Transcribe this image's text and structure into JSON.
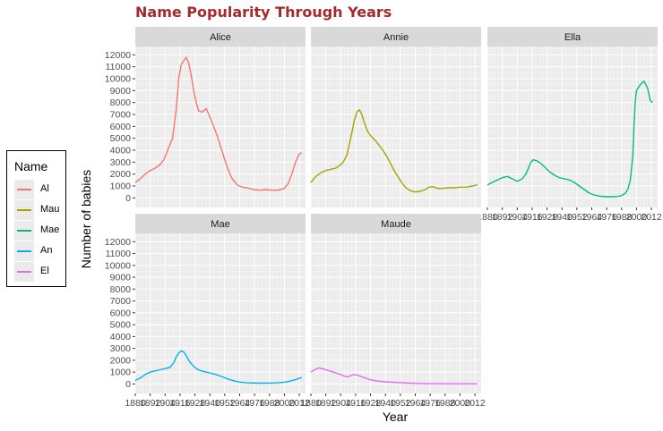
{
  "title": "Name Popularity Through Years",
  "legend": {
    "title": "Name",
    "entries": [
      {
        "label": "Al",
        "color": "#f8766d"
      },
      {
        "label": "Mau",
        "color": "#a3a500"
      },
      {
        "label": "Mae",
        "color": "#00bf7d"
      },
      {
        "label": "An",
        "color": "#00b0f6"
      },
      {
        "label": "El",
        "color": "#e76bf3"
      }
    ]
  },
  "chart_data": {
    "type": "line",
    "facet": "wrap",
    "xlabel": "Year",
    "ylabel": "Number of babies",
    "xlim": [
      1880,
      2017
    ],
    "ylim": [
      -800,
      12700
    ],
    "x_tick_labels": [
      "1880",
      "1892",
      "1904",
      "1916",
      "1928",
      "1940",
      "1952",
      "1964",
      "1976",
      "1988",
      "2000",
      "2012"
    ],
    "y_ticks": [
      0,
      1000,
      2000,
      3000,
      4000,
      5000,
      6000,
      7000,
      8000,
      9000,
      10000,
      11000,
      12000
    ],
    "panels": [
      {
        "title": "Alice",
        "color": "#f8766d",
        "points": [
          [
            1880,
            1300
          ],
          [
            1884,
            1600
          ],
          [
            1888,
            2000
          ],
          [
            1892,
            2300
          ],
          [
            1896,
            2500
          ],
          [
            1900,
            2800
          ],
          [
            1903,
            3200
          ],
          [
            1906,
            4000
          ],
          [
            1910,
            5000
          ],
          [
            1913,
            7500
          ],
          [
            1915,
            10000
          ],
          [
            1917,
            11200
          ],
          [
            1919,
            11500
          ],
          [
            1921,
            11800
          ],
          [
            1923,
            11300
          ],
          [
            1925,
            10300
          ],
          [
            1927,
            9000
          ],
          [
            1929,
            8000
          ],
          [
            1931,
            7300
          ],
          [
            1934,
            7200
          ],
          [
            1937,
            7500
          ],
          [
            1940,
            6800
          ],
          [
            1943,
            6000
          ],
          [
            1946,
            5200
          ],
          [
            1949,
            4200
          ],
          [
            1952,
            3200
          ],
          [
            1955,
            2300
          ],
          [
            1958,
            1600
          ],
          [
            1962,
            1100
          ],
          [
            1966,
            900
          ],
          [
            1970,
            850
          ],
          [
            1975,
            700
          ],
          [
            1980,
            650
          ],
          [
            1985,
            700
          ],
          [
            1990,
            650
          ],
          [
            1995,
            650
          ],
          [
            2000,
            800
          ],
          [
            2003,
            1200
          ],
          [
            2006,
            2000
          ],
          [
            2009,
            3000
          ],
          [
            2012,
            3700
          ],
          [
            2014,
            3800
          ]
        ]
      },
      {
        "title": "Annie",
        "color": "#a3a500",
        "points": [
          [
            1880,
            1300
          ],
          [
            1884,
            1800
          ],
          [
            1888,
            2100
          ],
          [
            1892,
            2300
          ],
          [
            1896,
            2400
          ],
          [
            1900,
            2500
          ],
          [
            1903,
            2700
          ],
          [
            1906,
            3000
          ],
          [
            1909,
            3600
          ],
          [
            1912,
            5000
          ],
          [
            1915,
            6500
          ],
          [
            1917,
            7200
          ],
          [
            1919,
            7400
          ],
          [
            1921,
            7000
          ],
          [
            1923,
            6300
          ],
          [
            1926,
            5500
          ],
          [
            1929,
            5100
          ],
          [
            1932,
            4800
          ],
          [
            1935,
            4400
          ],
          [
            1938,
            4000
          ],
          [
            1941,
            3500
          ],
          [
            1944,
            2900
          ],
          [
            1947,
            2300
          ],
          [
            1950,
            1800
          ],
          [
            1953,
            1300
          ],
          [
            1956,
            900
          ],
          [
            1960,
            600
          ],
          [
            1964,
            500
          ],
          [
            1968,
            550
          ],
          [
            1972,
            700
          ],
          [
            1975,
            900
          ],
          [
            1978,
            950
          ],
          [
            1982,
            800
          ],
          [
            1986,
            800
          ],
          [
            1990,
            850
          ],
          [
            1995,
            850
          ],
          [
            2000,
            900
          ],
          [
            2005,
            900
          ],
          [
            2010,
            1000
          ],
          [
            2014,
            1100
          ]
        ]
      },
      {
        "title": "Ella",
        "color": "#00bf7d",
        "points": [
          [
            1880,
            1100
          ],
          [
            1884,
            1300
          ],
          [
            1888,
            1500
          ],
          [
            1892,
            1700
          ],
          [
            1896,
            1800
          ],
          [
            1900,
            1600
          ],
          [
            1904,
            1400
          ],
          [
            1908,
            1600
          ],
          [
            1911,
            2000
          ],
          [
            1913,
            2500
          ],
          [
            1915,
            3000
          ],
          [
            1917,
            3200
          ],
          [
            1920,
            3100
          ],
          [
            1923,
            2900
          ],
          [
            1926,
            2600
          ],
          [
            1930,
            2200
          ],
          [
            1934,
            1900
          ],
          [
            1938,
            1700
          ],
          [
            1942,
            1600
          ],
          [
            1946,
            1500
          ],
          [
            1950,
            1300
          ],
          [
            1954,
            1000
          ],
          [
            1958,
            700
          ],
          [
            1962,
            400
          ],
          [
            1966,
            250
          ],
          [
            1970,
            150
          ],
          [
            1975,
            100
          ],
          [
            1980,
            100
          ],
          [
            1985,
            120
          ],
          [
            1988,
            200
          ],
          [
            1991,
            400
          ],
          [
            1993,
            700
          ],
          [
            1995,
            1500
          ],
          [
            1997,
            3500
          ],
          [
            1998,
            6000
          ],
          [
            1999,
            8000
          ],
          [
            2000,
            9000
          ],
          [
            2003,
            9500
          ],
          [
            2006,
            9800
          ],
          [
            2009,
            9200
          ],
          [
            2011,
            8200
          ],
          [
            2013,
            8000
          ]
        ]
      },
      {
        "title": "Mae",
        "color": "#00b0f6",
        "points": [
          [
            1880,
            300
          ],
          [
            1884,
            500
          ],
          [
            1888,
            800
          ],
          [
            1892,
            1000
          ],
          [
            1896,
            1100
          ],
          [
            1900,
            1200
          ],
          [
            1904,
            1300
          ],
          [
            1908,
            1400
          ],
          [
            1911,
            1800
          ],
          [
            1913,
            2300
          ],
          [
            1915,
            2600
          ],
          [
            1917,
            2800
          ],
          [
            1919,
            2700
          ],
          [
            1921,
            2400
          ],
          [
            1923,
            2000
          ],
          [
            1926,
            1600
          ],
          [
            1929,
            1300
          ],
          [
            1933,
            1100
          ],
          [
            1937,
            1000
          ],
          [
            1941,
            900
          ],
          [
            1945,
            800
          ],
          [
            1950,
            600
          ],
          [
            1955,
            400
          ],
          [
            1960,
            250
          ],
          [
            1965,
            150
          ],
          [
            1970,
            100
          ],
          [
            1975,
            80
          ],
          [
            1980,
            70
          ],
          [
            1985,
            70
          ],
          [
            1990,
            80
          ],
          [
            1995,
            100
          ],
          [
            2000,
            150
          ],
          [
            2005,
            250
          ],
          [
            2010,
            400
          ],
          [
            2014,
            550
          ]
        ]
      },
      {
        "title": "Maude",
        "color": "#e76bf3",
        "points": [
          [
            1880,
            1000
          ],
          [
            1883,
            1200
          ],
          [
            1886,
            1350
          ],
          [
            1889,
            1300
          ],
          [
            1892,
            1200
          ],
          [
            1895,
            1100
          ],
          [
            1898,
            1000
          ],
          [
            1901,
            900
          ],
          [
            1904,
            800
          ],
          [
            1907,
            650
          ],
          [
            1910,
            600
          ],
          [
            1912,
            700
          ],
          [
            1914,
            800
          ],
          [
            1917,
            750
          ],
          [
            1920,
            650
          ],
          [
            1924,
            500
          ],
          [
            1928,
            350
          ],
          [
            1933,
            250
          ],
          [
            1940,
            180
          ],
          [
            1950,
            120
          ],
          [
            1960,
            70
          ],
          [
            1970,
            40
          ],
          [
            1980,
            25
          ],
          [
            1990,
            20
          ],
          [
            2000,
            15
          ],
          [
            2010,
            15
          ],
          [
            2014,
            15
          ]
        ]
      }
    ]
  }
}
